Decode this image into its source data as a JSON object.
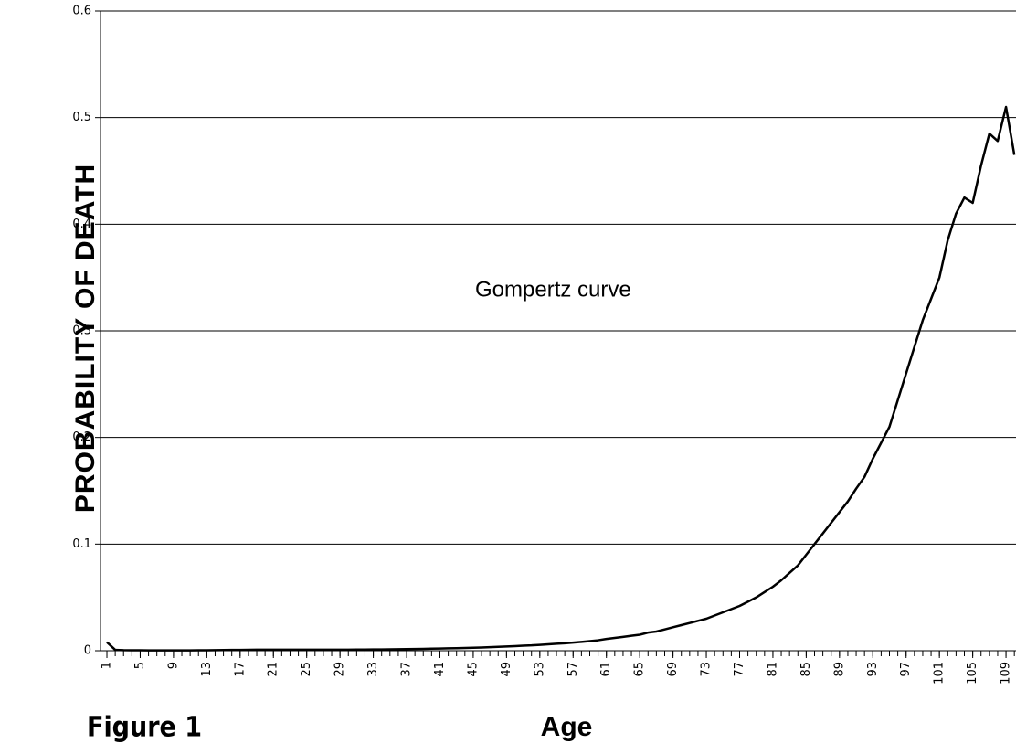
{
  "chart_data": {
    "type": "line",
    "y_label": "PROBABILITY OF DEATH",
    "x_label": "Age",
    "caption": "Figure 1",
    "annotation": "Gompertz curve",
    "x": [
      1,
      2,
      3,
      4,
      5,
      6,
      7,
      8,
      9,
      10,
      11,
      12,
      13,
      14,
      15,
      16,
      17,
      18,
      19,
      20,
      21,
      22,
      23,
      24,
      25,
      26,
      27,
      28,
      29,
      30,
      31,
      32,
      33,
      34,
      35,
      36,
      37,
      38,
      39,
      40,
      41,
      42,
      43,
      44,
      45,
      46,
      47,
      48,
      49,
      50,
      51,
      52,
      53,
      54,
      55,
      56,
      57,
      58,
      59,
      60,
      61,
      62,
      63,
      64,
      65,
      66,
      67,
      68,
      69,
      70,
      71,
      72,
      73,
      74,
      75,
      76,
      77,
      78,
      79,
      80,
      81,
      82,
      83,
      84,
      85,
      86,
      87,
      88,
      89,
      90,
      91,
      92,
      93,
      94,
      95,
      96,
      97,
      98,
      99,
      100,
      101,
      102,
      103,
      104,
      105,
      106,
      107,
      108,
      109,
      110
    ],
    "series": [
      {
        "color": "#000000",
        "values": [
          0.008,
          0.0008,
          0.0005,
          0.0004,
          0.0004,
          0.0003,
          0.0003,
          0.0003,
          0.0003,
          0.0003,
          0.0003,
          0.0004,
          0.0004,
          0.0005,
          0.0006,
          0.0007,
          0.0008,
          0.0009,
          0.001,
          0.001,
          0.001,
          0.001,
          0.001,
          0.001,
          0.001,
          0.001,
          0.001,
          0.001,
          0.001,
          0.001,
          0.0011,
          0.0011,
          0.0012,
          0.0012,
          0.0013,
          0.0014,
          0.0015,
          0.0016,
          0.0017,
          0.0019,
          0.002,
          0.0022,
          0.0024,
          0.0026,
          0.0028,
          0.003,
          0.0033,
          0.0036,
          0.004,
          0.0043,
          0.0047,
          0.005,
          0.0055,
          0.006,
          0.0065,
          0.007,
          0.0076,
          0.0083,
          0.009,
          0.0098,
          0.011,
          0.012,
          0.013,
          0.014,
          0.015,
          0.017,
          0.018,
          0.02,
          0.022,
          0.024,
          0.026,
          0.028,
          0.03,
          0.033,
          0.036,
          0.039,
          0.042,
          0.046,
          0.05,
          0.055,
          0.06,
          0.066,
          0.073,
          0.08,
          0.09,
          0.1,
          0.11,
          0.12,
          0.13,
          0.14,
          0.152,
          0.163,
          0.18,
          0.195,
          0.21,
          0.235,
          0.26,
          0.285,
          0.31,
          0.33,
          0.35,
          0.385,
          0.41,
          0.425,
          0.42,
          0.455,
          0.485,
          0.478,
          0.51,
          0.465
        ]
      }
    ],
    "xlim": [
      0.23,
      110.2
    ],
    "xticks": [
      1,
      5,
      9,
      13,
      17,
      21,
      25,
      29,
      33,
      37,
      41,
      45,
      49,
      53,
      57,
      61,
      65,
      69,
      73,
      77,
      81,
      85,
      89,
      93,
      97,
      101,
      105,
      109
    ],
    "ylim": [
      0,
      0.6
    ],
    "yticks": [
      0,
      0.1,
      0.2,
      0.3,
      0.4,
      0.5,
      0.6
    ],
    "grid": true
  }
}
